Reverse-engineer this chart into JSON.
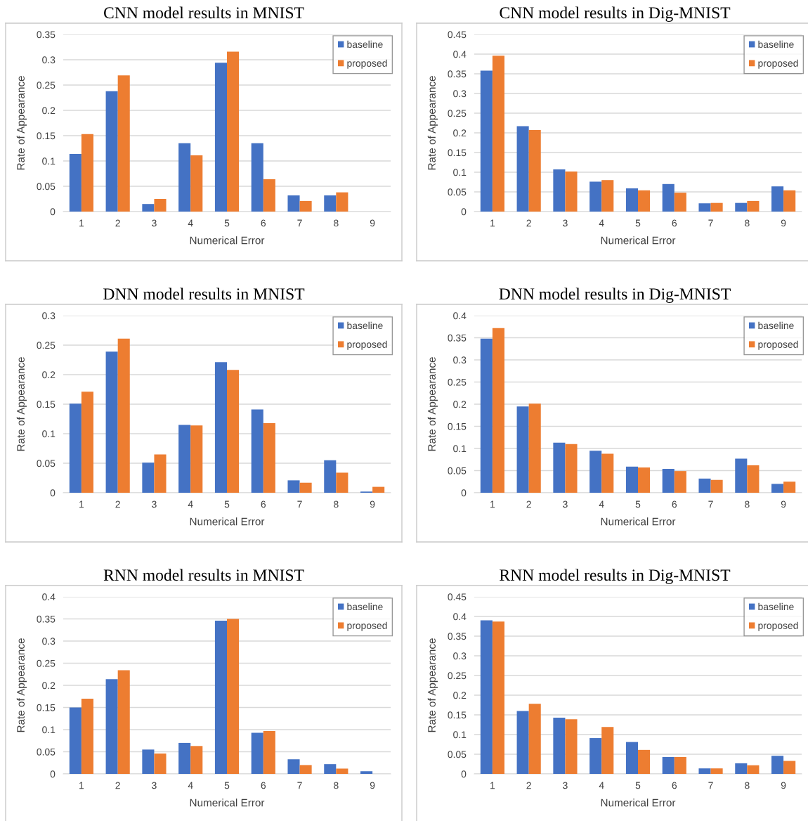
{
  "chart_data": [
    {
      "type": "bar",
      "title": "CNN model results in MNIST",
      "xlabel": "Numerical Error",
      "ylabel": "Rate of Appearance",
      "categories": [
        "1",
        "2",
        "3",
        "4",
        "5",
        "6",
        "7",
        "8",
        "9"
      ],
      "ylim": [
        0,
        0.35
      ],
      "yticks": [
        0,
        0.05,
        0.1,
        0.15,
        0.2,
        0.25,
        0.3,
        0.35
      ],
      "grid": "y",
      "legend": "top right",
      "series": [
        {
          "name": "baseline",
          "color": "#4472c4",
          "values": [
            0.114,
            0.238,
            0.015,
            0.135,
            0.294,
            0.135,
            0.032,
            0.032,
            0
          ]
        },
        {
          "name": "proposed",
          "color": "#ed7d31",
          "values": [
            0.153,
            0.269,
            0.025,
            0.111,
            0.316,
            0.064,
            0.021,
            0.038,
            0
          ]
        }
      ]
    },
    {
      "type": "bar",
      "title": "CNN model results in Dig-MNIST",
      "xlabel": "Numerical Error",
      "ylabel": "Rate of Appearance",
      "categories": [
        "1",
        "2",
        "3",
        "4",
        "5",
        "6",
        "7",
        "8",
        "9"
      ],
      "ylim": [
        0,
        0.45
      ],
      "yticks": [
        0,
        0.05,
        0.1,
        0.15,
        0.2,
        0.25,
        0.3,
        0.35,
        0.4,
        0.45
      ],
      "grid": "y",
      "legend": "top right",
      "series": [
        {
          "name": "baseline",
          "color": "#4472c4",
          "values": [
            0.358,
            0.217,
            0.107,
            0.076,
            0.059,
            0.07,
            0.021,
            0.022,
            0.064
          ]
        },
        {
          "name": "proposed",
          "color": "#ed7d31",
          "values": [
            0.396,
            0.207,
            0.102,
            0.08,
            0.054,
            0.048,
            0.022,
            0.027,
            0.054
          ]
        }
      ]
    },
    {
      "type": "bar",
      "title": "DNN model results in MNIST",
      "xlabel": "Numerical Error",
      "ylabel": "Rate of Appearance",
      "categories": [
        "1",
        "2",
        "3",
        "4",
        "5",
        "6",
        "7",
        "8",
        "9"
      ],
      "ylim": [
        0,
        0.3
      ],
      "yticks": [
        0,
        0.05,
        0.1,
        0.15,
        0.2,
        0.25,
        0.3
      ],
      "grid": "y",
      "legend": "top right",
      "series": [
        {
          "name": "baseline",
          "color": "#4472c4",
          "values": [
            0.151,
            0.239,
            0.051,
            0.115,
            0.221,
            0.141,
            0.021,
            0.055,
            0.002
          ]
        },
        {
          "name": "proposed",
          "color": "#ed7d31",
          "values": [
            0.171,
            0.261,
            0.065,
            0.114,
            0.208,
            0.118,
            0.017,
            0.034,
            0.01
          ]
        }
      ]
    },
    {
      "type": "bar",
      "title": "DNN model results in Dig-MNIST",
      "xlabel": "Numerical Error",
      "ylabel": "Rate of Appearance",
      "categories": [
        "1",
        "2",
        "3",
        "4",
        "5",
        "6",
        "7",
        "8",
        "9"
      ],
      "ylim": [
        0,
        0.4
      ],
      "yticks": [
        0,
        0.05,
        0.1,
        0.15,
        0.2,
        0.25,
        0.3,
        0.35,
        0.4
      ],
      "grid": "y",
      "legend": "top right",
      "series": [
        {
          "name": "baseline",
          "color": "#4472c4",
          "values": [
            0.348,
            0.195,
            0.113,
            0.095,
            0.059,
            0.054,
            0.032,
            0.077,
            0.02
          ]
        },
        {
          "name": "proposed",
          "color": "#ed7d31",
          "values": [
            0.372,
            0.201,
            0.11,
            0.088,
            0.057,
            0.049,
            0.029,
            0.062,
            0.025
          ]
        }
      ]
    },
    {
      "type": "bar",
      "title": "RNN model results in MNIST",
      "xlabel": "Numerical Error",
      "ylabel": "Rate of Appearance",
      "categories": [
        "1",
        "2",
        "3",
        "4",
        "5",
        "6",
        "7",
        "8",
        "9"
      ],
      "ylim": [
        0,
        0.4
      ],
      "yticks": [
        0,
        0.05,
        0.1,
        0.15,
        0.2,
        0.25,
        0.3,
        0.35,
        0.4
      ],
      "grid": "y",
      "legend": "top right",
      "series": [
        {
          "name": "baseline",
          "color": "#4472c4",
          "values": [
            0.15,
            0.214,
            0.055,
            0.07,
            0.346,
            0.093,
            0.033,
            0.022,
            0.006
          ]
        },
        {
          "name": "proposed",
          "color": "#ed7d31",
          "values": [
            0.17,
            0.234,
            0.046,
            0.063,
            0.35,
            0.097,
            0.02,
            0.012,
            0
          ]
        }
      ]
    },
    {
      "type": "bar",
      "title": "RNN model results in Dig-MNIST",
      "xlabel": "Numerical Error",
      "ylabel": "Rate of Appearance",
      "categories": [
        "1",
        "2",
        "3",
        "4",
        "5",
        "6",
        "7",
        "8",
        "9"
      ],
      "ylim": [
        0,
        0.45
      ],
      "yticks": [
        0,
        0.05,
        0.1,
        0.15,
        0.2,
        0.25,
        0.3,
        0.35,
        0.4,
        0.45
      ],
      "grid": "y",
      "legend": "top right",
      "series": [
        {
          "name": "baseline",
          "color": "#4472c4",
          "values": [
            0.39,
            0.16,
            0.143,
            0.091,
            0.081,
            0.043,
            0.014,
            0.027,
            0.046
          ]
        },
        {
          "name": "proposed",
          "color": "#ed7d31",
          "values": [
            0.387,
            0.178,
            0.139,
            0.119,
            0.061,
            0.043,
            0.014,
            0.022,
            0.033
          ]
        }
      ]
    }
  ]
}
